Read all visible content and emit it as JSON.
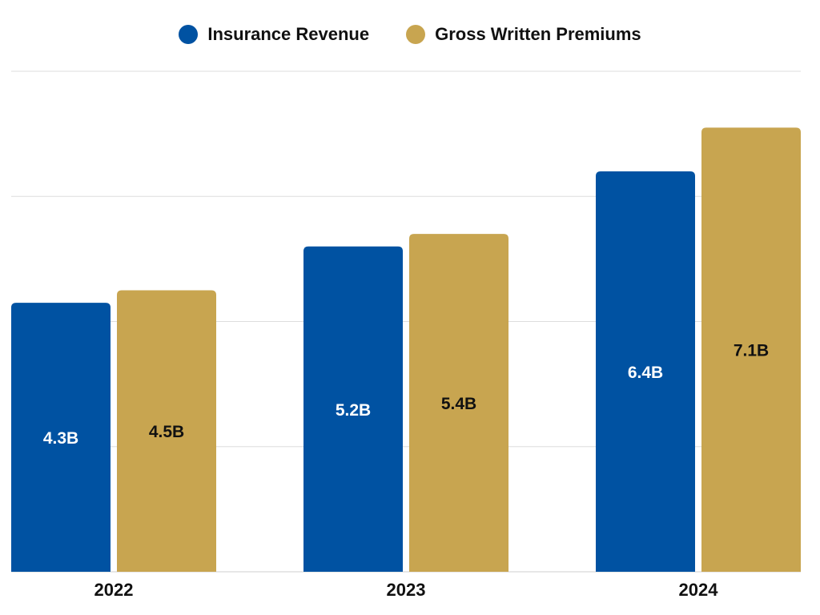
{
  "legend": {
    "items": [
      {
        "label": "Insurance Revenue",
        "color": "#0052A2"
      },
      {
        "label": "Gross Written Premiums",
        "color": "#C8A550"
      }
    ]
  },
  "chart_data": {
    "type": "bar",
    "categories": [
      "2022",
      "2023",
      "2024"
    ],
    "series": [
      {
        "name": "Insurance Revenue",
        "values": [
          4.3,
          5.2,
          6.4
        ],
        "labels": [
          "4.3B",
          "5.2B",
          "6.4B"
        ],
        "color": "#0052A2",
        "label_color": "#FFFFFF"
      },
      {
        "name": "Gross Written Premiums",
        "values": [
          4.5,
          5.4,
          7.1
        ],
        "labels": [
          "4.5B",
          "5.4B",
          "7.1B"
        ],
        "color": "#C8A550",
        "label_color": "#111111"
      }
    ],
    "ylim": [
      0,
      8
    ],
    "grid": true,
    "legend_position": "top"
  }
}
